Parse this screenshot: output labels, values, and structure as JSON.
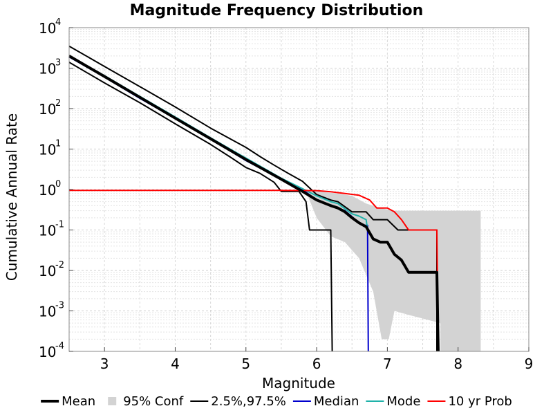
{
  "chart_data": {
    "type": "line",
    "title": "Magnitude Frequency Distribution",
    "xlabel": "Magnitude",
    "ylabel": "Cumulative Annual Rate",
    "xlim": [
      2.5,
      9
    ],
    "ylim": [
      0.0001,
      10000
    ],
    "yscale": "log",
    "grid": true,
    "legend_position": "bottom",
    "x_ticks": [
      {
        "value": 3,
        "label": "3"
      },
      {
        "value": 4,
        "label": "4"
      },
      {
        "value": 5,
        "label": "5"
      },
      {
        "value": 6,
        "label": "6"
      },
      {
        "value": 7,
        "label": "7"
      },
      {
        "value": 8,
        "label": "8"
      },
      {
        "value": 9,
        "label": "9"
      }
    ],
    "y_ticks": [
      {
        "value": 0.0001,
        "base": "10",
        "exp": "-4"
      },
      {
        "value": 0.001,
        "base": "10",
        "exp": "-3"
      },
      {
        "value": 0.01,
        "base": "10",
        "exp": "-2"
      },
      {
        "value": 0.1,
        "base": "10",
        "exp": "-1"
      },
      {
        "value": 1,
        "base": "10",
        "exp": "0"
      },
      {
        "value": 10,
        "base": "10",
        "exp": "1"
      },
      {
        "value": 100,
        "base": "10",
        "exp": "2"
      },
      {
        "value": 1000,
        "base": "10",
        "exp": "3"
      },
      {
        "value": 10000,
        "base": "10",
        "exp": "4"
      }
    ],
    "confidence_band": {
      "name": "95% Conf",
      "color": "#d3d3d3",
      "points": [
        [
          5.85,
          0.9
        ],
        [
          6.0,
          0.9
        ],
        [
          6.3,
          0.8
        ],
        [
          6.5,
          0.7
        ],
        [
          6.7,
          0.45
        ],
        [
          6.9,
          0.35
        ],
        [
          7.1,
          0.3
        ],
        [
          7.4,
          0.3
        ],
        [
          7.6,
          0.3
        ],
        [
          7.8,
          0.3
        ],
        [
          8.0,
          0.3
        ],
        [
          8.32,
          0.3
        ],
        [
          8.32,
          0.0001
        ],
        [
          7.75,
          0.0001
        ],
        [
          7.75,
          0.0005
        ],
        [
          7.3,
          0.0008
        ],
        [
          7.1,
          0.001
        ],
        [
          7.02,
          0.0002
        ],
        [
          6.92,
          0.0002
        ],
        [
          6.8,
          0.003
        ],
        [
          6.6,
          0.02
        ],
        [
          6.4,
          0.05
        ],
        [
          6.2,
          0.07
        ],
        [
          6.0,
          0.2
        ],
        [
          5.85,
          0.9
        ]
      ]
    },
    "series": [
      {
        "name": "2.5%,97.5%",
        "color": "#000000",
        "width": 2,
        "legend": true,
        "points": [
          [
            2.5,
            3500
          ],
          [
            3.0,
            1100
          ],
          [
            3.5,
            350
          ],
          [
            4.0,
            110
          ],
          [
            4.5,
            33
          ],
          [
            5.0,
            11
          ],
          [
            5.2,
            6.5
          ],
          [
            5.4,
            4.0
          ],
          [
            5.6,
            2.5
          ],
          [
            5.8,
            1.6
          ],
          [
            6.0,
            0.75
          ],
          [
            6.2,
            0.55
          ],
          [
            6.3,
            0.5
          ],
          [
            6.5,
            0.28
          ],
          [
            6.7,
            0.28
          ],
          [
            6.8,
            0.18
          ],
          [
            7.0,
            0.18
          ],
          [
            7.15,
            0.1
          ],
          [
            7.7,
            0.1
          ],
          [
            7.7,
            0.0001
          ]
        ]
      },
      {
        "name": "2.5%,97.5% lower",
        "color": "#000000",
        "width": 2,
        "legend": false,
        "points": [
          [
            2.5,
            1400
          ],
          [
            3.0,
            430
          ],
          [
            3.5,
            140
          ],
          [
            4.0,
            42
          ],
          [
            4.5,
            13
          ],
          [
            4.8,
            6
          ],
          [
            5.0,
            3.5
          ],
          [
            5.2,
            2.5
          ],
          [
            5.4,
            1.5
          ],
          [
            5.5,
            0.9
          ],
          [
            5.75,
            0.9
          ],
          [
            5.85,
            0.5
          ],
          [
            5.9,
            0.1
          ],
          [
            6.2,
            0.1
          ],
          [
            6.22,
            0.0001
          ]
        ]
      },
      {
        "name": "Median",
        "color": "#0000cd",
        "width": 2,
        "legend": true,
        "points": [
          [
            2.5,
            1900
          ],
          [
            3.0,
            600
          ],
          [
            3.5,
            180
          ],
          [
            4.0,
            57
          ],
          [
            4.5,
            18
          ],
          [
            5.0,
            5.2
          ],
          [
            5.5,
            1.8
          ],
          [
            5.8,
            1.0
          ],
          [
            6.0,
            0.55
          ],
          [
            6.2,
            0.4
          ],
          [
            6.4,
            0.3
          ],
          [
            6.55,
            0.18
          ],
          [
            6.65,
            0.13
          ],
          [
            6.72,
            0.13
          ],
          [
            6.73,
            0.0001
          ]
        ]
      },
      {
        "name": "Mode",
        "color": "#20b2aa",
        "width": 2,
        "legend": true,
        "points": [
          [
            2.5,
            2000
          ],
          [
            3.0,
            650
          ],
          [
            3.5,
            200
          ],
          [
            4.0,
            62
          ],
          [
            4.5,
            19
          ],
          [
            4.9,
            7.5
          ],
          [
            5.0,
            6
          ],
          [
            5.5,
            1.9
          ],
          [
            5.8,
            1.05
          ],
          [
            6.0,
            0.7
          ],
          [
            6.2,
            0.5
          ],
          [
            6.3,
            0.45
          ],
          [
            6.5,
            0.25
          ],
          [
            6.6,
            0.22
          ],
          [
            6.7,
            0.18
          ],
          [
            6.72,
            0.1
          ]
        ]
      },
      {
        "name": "10 yr Prob",
        "color": "#ff0000",
        "width": 2,
        "legend": true,
        "points": [
          [
            2.5,
            0.95
          ],
          [
            5.5,
            0.95
          ],
          [
            6.0,
            0.94
          ],
          [
            6.2,
            0.88
          ],
          [
            6.4,
            0.8
          ],
          [
            6.6,
            0.72
          ],
          [
            6.75,
            0.55
          ],
          [
            6.85,
            0.35
          ],
          [
            7.0,
            0.35
          ],
          [
            7.1,
            0.28
          ],
          [
            7.2,
            0.18
          ],
          [
            7.3,
            0.1
          ],
          [
            7.7,
            0.1
          ],
          [
            7.72,
            0.0001
          ]
        ]
      },
      {
        "name": "Mean",
        "color": "#000000",
        "width": 4,
        "legend": true,
        "points": [
          [
            2.5,
            2000
          ],
          [
            3.0,
            620
          ],
          [
            3.5,
            190
          ],
          [
            4.0,
            58
          ],
          [
            4.5,
            18
          ],
          [
            5.0,
            5.5
          ],
          [
            5.5,
            1.8
          ],
          [
            5.8,
            0.9
          ],
          [
            6.0,
            0.55
          ],
          [
            6.2,
            0.4
          ],
          [
            6.3,
            0.35
          ],
          [
            6.4,
            0.28
          ],
          [
            6.5,
            0.2
          ],
          [
            6.6,
            0.15
          ],
          [
            6.7,
            0.12
          ],
          [
            6.8,
            0.06
          ],
          [
            6.9,
            0.05
          ],
          [
            7.0,
            0.05
          ],
          [
            7.1,
            0.025
          ],
          [
            7.2,
            0.018
          ],
          [
            7.3,
            0.009
          ],
          [
            7.7,
            0.009
          ],
          [
            7.72,
            0.0001
          ]
        ]
      }
    ],
    "legend": [
      {
        "name": "Mean",
        "color": "#000000",
        "style": "thick-line"
      },
      {
        "name": "95% Conf",
        "color": "#d3d3d3",
        "style": "box"
      },
      {
        "name": "2.5%,97.5%",
        "color": "#000000",
        "style": "line"
      },
      {
        "name": "Median",
        "color": "#0000cd",
        "style": "line"
      },
      {
        "name": "Mode",
        "color": "#20b2aa",
        "style": "line"
      },
      {
        "name": "10 yr Prob",
        "color": "#ff0000",
        "style": "line"
      }
    ]
  }
}
